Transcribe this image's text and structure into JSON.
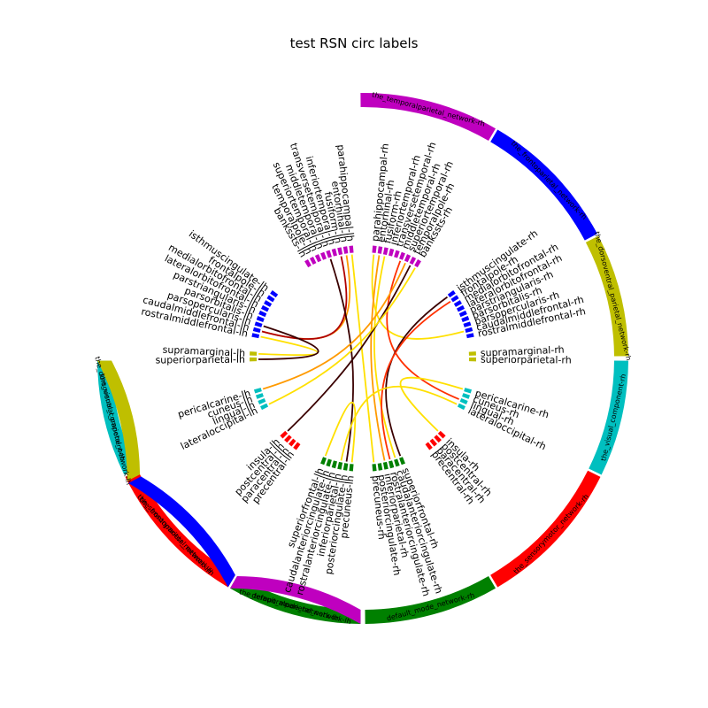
{
  "title": "test RSN circ labels",
  "networks": [
    {
      "label": "the_temporalparietal_network-rh",
      "color": "#bf00bf",
      "a0": 90.5,
      "a1": 60.0
    },
    {
      "label": "the_frontoparietal_network-rh",
      "color": "#0000ff",
      "a0": 59.5,
      "a1": 28.0
    },
    {
      "label": "the_dorsoventral_parietal_network-rh",
      "color": "#bfbf00",
      "a0": 27.5,
      "a1": 0.5
    },
    {
      "label": "the_visual_component-rh",
      "color": "#00bfbf",
      "a0": -0.5,
      "a1": -26.0
    },
    {
      "label": "the_sensorymotor_network-rh",
      "color": "#ff0000",
      "a0": -26.5,
      "a1": -59.5
    },
    {
      "label": "default_mode_network-rh",
      "color": "#008000",
      "a0": -60.0,
      "a1": -89.5
    },
    {
      "label": "default_mode_network-lh",
      "color": "#008000",
      "a0": -90.5,
      "a1": -120.0
    },
    {
      "label": "the_sensorymotor_network-lh",
      "color": "#ff0000",
      "a0": -120.5,
      "a1": -153.5
    },
    {
      "label": "the_visual_component-lh",
      "color": "#00bfbf",
      "a0": -154.0,
      "a1": -179.5
    },
    {
      "label": "the_dorsoventral_parietal_network-lh",
      "color": "#bfbf00",
      "a0": 180.5,
      "a1": 207.5
    },
    {
      "label": "the_frontoparietal_network-lh",
      "color": "#0000ff",
      "a0": 208.0,
      "a1": 239.5
    },
    {
      "label": "the_temporalparietal_network-lh",
      "color": "#bf00bf",
      "a0": 240.0,
      "a1": 269.5
    }
  ],
  "regions": [
    {
      "label": "parahippocampal-rh",
      "angle": 84,
      "color": "#bf00bf"
    },
    {
      "label": "entorhinal-rh",
      "angle": 81,
      "color": "#bf00bf"
    },
    {
      "label": "fusiform-rh",
      "angle": 78,
      "color": "#bf00bf"
    },
    {
      "label": "inferiortemporal-rh",
      "angle": 75,
      "color": "#bf00bf"
    },
    {
      "label": "transversetemporal-rh",
      "angle": 72,
      "color": "#bf00bf"
    },
    {
      "label": "middletemporal-rh",
      "angle": 69,
      "color": "#bf00bf"
    },
    {
      "label": "superiortemporal-rh",
      "angle": 66,
      "color": "#bf00bf"
    },
    {
      "label": "temporalpole-rh",
      "angle": 63,
      "color": "#bf00bf"
    },
    {
      "label": "bankssts-rh",
      "angle": 60,
      "color": "#bf00bf"
    },
    {
      "label": "isthmuscingulate-rh",
      "angle": 36,
      "color": "#0000ff"
    },
    {
      "label": "frontalpole-rh",
      "angle": 33,
      "color": "#0000ff"
    },
    {
      "label": "medialorbitofrontal-rh",
      "angle": 30,
      "color": "#0000ff"
    },
    {
      "label": "lateralorbitofrontal-rh",
      "angle": 27,
      "color": "#0000ff"
    },
    {
      "label": "parstriangularis-rh",
      "angle": 24,
      "color": "#0000ff"
    },
    {
      "label": "parsorbitalis-rh",
      "angle": 21,
      "color": "#0000ff"
    },
    {
      "label": "parsopercularis-rh",
      "angle": 18,
      "color": "#0000ff"
    },
    {
      "label": "caudalmiddlefrontal-rh",
      "angle": 15,
      "color": "#0000ff"
    },
    {
      "label": "rostralmiddlefrontal-rh",
      "angle": 12,
      "color": "#0000ff"
    },
    {
      "label": "supramarginal-rh",
      "angle": 2.5,
      "color": "#bfbf00"
    },
    {
      "label": "superiorparietal-rh",
      "angle": -0.5,
      "color": "#bfbf00"
    },
    {
      "label": "pericalcarine-rh",
      "angle": -17,
      "color": "#00bfbf"
    },
    {
      "label": "cuneus-rh",
      "angle": -20,
      "color": "#00bfbf"
    },
    {
      "label": "lingual-rh",
      "angle": -23,
      "color": "#00bfbf"
    },
    {
      "label": "lateraloccipital-rh",
      "angle": -26,
      "color": "#00bfbf"
    },
    {
      "label": "insula-rh",
      "angle": -44,
      "color": "#ff0000"
    },
    {
      "label": "postcentral-rh",
      "angle": -47,
      "color": "#ff0000"
    },
    {
      "label": "paracentral-rh",
      "angle": -50,
      "color": "#ff0000"
    },
    {
      "label": "precentral-rh",
      "angle": -53,
      "color": "#ff0000"
    },
    {
      "label": "superiorfrontal-rh",
      "angle": -69,
      "color": "#008000"
    },
    {
      "label": "caudalanteriorcingulate-rh",
      "angle": -72,
      "color": "#008000"
    },
    {
      "label": "rostralanteriorcingulate-rh",
      "angle": -75,
      "color": "#008000"
    },
    {
      "label": "inferiorparietal-rh",
      "angle": -78,
      "color": "#008000"
    },
    {
      "label": "posteriorcingulate-rh",
      "angle": -81,
      "color": "#008000"
    },
    {
      "label": "precuneus-rh",
      "angle": -84,
      "color": "#008000"
    },
    {
      "label": "precuneus-lh",
      "angle": -96,
      "color": "#008000"
    },
    {
      "label": "posteriorcingulate-lh",
      "angle": -99,
      "color": "#008000"
    },
    {
      "label": "inferiorparietal-lh",
      "angle": -102,
      "color": "#008000"
    },
    {
      "label": "rostralanteriorcingulate-lh",
      "angle": -105,
      "color": "#008000"
    },
    {
      "label": "caudalanteriorcingulate-lh",
      "angle": -108,
      "color": "#008000"
    },
    {
      "label": "superiorfrontal-lh",
      "angle": -111,
      "color": "#008000"
    },
    {
      "label": "precentral-lh",
      "angle": -127,
      "color": "#ff0000"
    },
    {
      "label": "paracentral-lh",
      "angle": -130,
      "color": "#ff0000"
    },
    {
      "label": "postcentral-lh",
      "angle": -133,
      "color": "#ff0000"
    },
    {
      "label": "insula-lh",
      "angle": -136,
      "color": "#ff0000"
    },
    {
      "label": "lateraloccipital-lh",
      "angle": -154,
      "color": "#00bfbf"
    },
    {
      "label": "lingual-lh",
      "angle": -157,
      "color": "#00bfbf"
    },
    {
      "label": "cuneus-lh",
      "angle": -160,
      "color": "#00bfbf"
    },
    {
      "label": "pericalcarine-lh",
      "angle": -163,
      "color": "#00bfbf"
    },
    {
      "label": "superiorparietal-lh",
      "angle": 180.5,
      "color": "#bfbf00"
    },
    {
      "label": "supramarginal-lh",
      "angle": 177.5,
      "color": "#bfbf00"
    },
    {
      "label": "rostralmiddlefrontal-lh",
      "angle": 168,
      "color": "#0000ff"
    },
    {
      "label": "caudalmiddlefrontal-lh",
      "angle": 165,
      "color": "#0000ff"
    },
    {
      "label": "parsopercularis-lh",
      "angle": 162,
      "color": "#0000ff"
    },
    {
      "label": "parsorbitalis-lh",
      "angle": 159,
      "color": "#0000ff"
    },
    {
      "label": "parstriangularis-lh",
      "angle": 156,
      "color": "#0000ff"
    },
    {
      "label": "lateralorbitofrontal-lh",
      "angle": 153,
      "color": "#0000ff"
    },
    {
      "label": "medialorbitofrontal-lh",
      "angle": 150,
      "color": "#0000ff"
    },
    {
      "label": "frontalpole-lh",
      "angle": 147,
      "color": "#0000ff"
    },
    {
      "label": "isthmuscingulate-lh",
      "angle": 144,
      "color": "#0000ff"
    },
    {
      "label": "bankssts-lh",
      "angle": 120,
      "color": "#bf00bf"
    },
    {
      "label": "temporalpole-lh",
      "angle": 117,
      "color": "#bf00bf"
    },
    {
      "label": "superiortemporal-lh",
      "angle": 114,
      "color": "#bf00bf"
    },
    {
      "label": "middletemporal-lh",
      "angle": 111,
      "color": "#bf00bf"
    },
    {
      "label": "transversetemporal-lh",
      "angle": 108,
      "color": "#bf00bf"
    },
    {
      "label": "inferiortemporal-lh",
      "angle": 105,
      "color": "#bf00bf"
    },
    {
      "label": "fusiform-lh",
      "angle": 102,
      "color": "#bf00bf"
    },
    {
      "label": "entorhinal-lh",
      "angle": 99,
      "color": "#bf00bf"
    },
    {
      "label": "parahippocampal-lh",
      "angle": 96,
      "color": "#bf00bf"
    }
  ],
  "connections": [
    {
      "a": "parahippocampal-lh",
      "b": "precuneus-rh",
      "color": "#ffe000"
    },
    {
      "a": "entorhinal-lh",
      "b": "caudalmiddlefrontal-lh",
      "color": "#ff9a00"
    },
    {
      "a": "fusiform-lh",
      "b": "caudalmiddlefrontal-lh",
      "color": "#b00000"
    },
    {
      "a": "transversetemporal-lh",
      "b": "posteriorcingulate-lh",
      "color": "#3a0000"
    },
    {
      "a": "parahippocampal-rh",
      "b": "caudalmiddlefrontal-rh",
      "color": "#ffe000"
    },
    {
      "a": "entorhinal-rh",
      "b": "inferiorparietal-rh",
      "color": "#ff9a00"
    },
    {
      "a": "fusiform-rh",
      "b": "caudalanteriorcingulate-rh",
      "color": "#ffe000"
    },
    {
      "a": "middletemporal-rh",
      "b": "lingual-rh",
      "color": "#ff3000"
    },
    {
      "a": "temporalpole-rh",
      "b": "insula-lh",
      "color": "#3a0000"
    },
    {
      "a": "superiortemporal-rh",
      "b": "pericalcarine-lh",
      "color": "#ff9a00"
    },
    {
      "a": "bankssts-rh",
      "b": "lateraloccipital-lh",
      "color": "#ffe000"
    },
    {
      "a": "isthmuscingulate-rh",
      "b": "superiorfrontal-rh",
      "color": "#3a0000"
    },
    {
      "a": "frontalpole-rh",
      "b": "rostralanteriorcingulate-rh",
      "color": "#ff3000"
    },
    {
      "a": "rostralmiddlefrontal-lh",
      "b": "supramarginal-lh",
      "color": "#ffe000"
    },
    {
      "a": "parsopercularis-lh",
      "b": "superiorparietal-lh",
      "color": "#3a0000"
    },
    {
      "a": "precuneus-lh",
      "b": "superiorfrontal-lh",
      "color": "#ffe000"
    },
    {
      "a": "insula-rh",
      "b": "pericalcarine-rh",
      "color": "#ffe000"
    },
    {
      "a": "inferiorparietal-lh",
      "b": "lateraloccipital-rh",
      "color": "#ffe000"
    }
  ]
}
